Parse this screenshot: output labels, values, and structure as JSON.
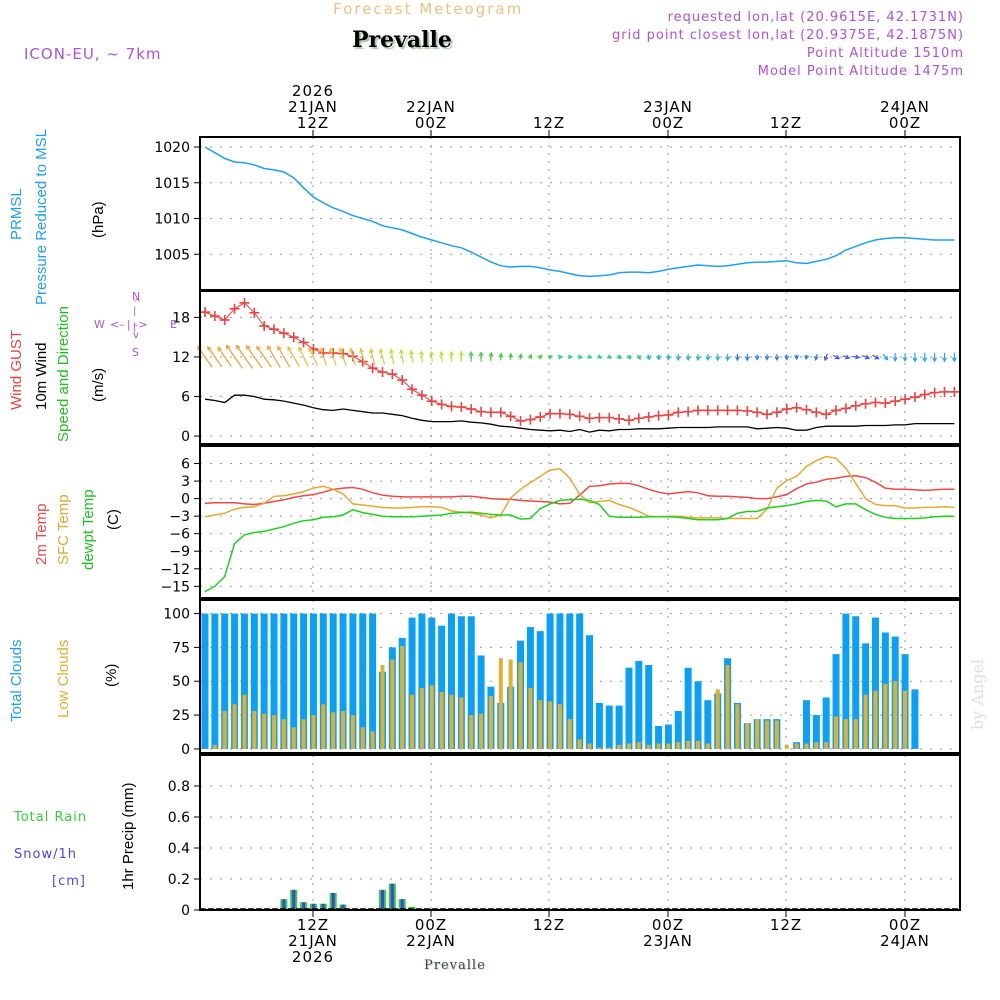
{
  "header": {
    "subtitle": "Forecast Meteogram",
    "station": "Prevalle",
    "model": "ICON-EU, ~ 7km",
    "requested": "requested lon,lat (20.9615E, 42.1731N)",
    "grid_point": "grid point closest lon,lat (20.9375E, 42.1875N)",
    "point_altitude": "Point Altitude 1510m",
    "model_altitude": "Model Point Altitude 1475m"
  },
  "top_axis": [
    {
      "lines": [
        "2026",
        "21JAN",
        "12Z"
      ]
    },
    {
      "lines": [
        "22JAN",
        "00Z"
      ]
    },
    {
      "lines": [
        "12Z"
      ]
    },
    {
      "lines": [
        "23JAN",
        "00Z"
      ]
    },
    {
      "lines": [
        "12Z"
      ]
    },
    {
      "lines": [
        "24JAN",
        "00Z"
      ]
    }
  ],
  "bottom_axis": [
    {
      "lines": [
        "12Z",
        "21JAN",
        "2026"
      ]
    },
    {
      "lines": [
        "00Z",
        "22JAN"
      ]
    },
    {
      "lines": [
        "12Z"
      ]
    },
    {
      "lines": [
        "00Z",
        "23JAN"
      ]
    },
    {
      "lines": [
        "12Z"
      ]
    },
    {
      "lines": [
        "00Z",
        "24JAN"
      ]
    }
  ],
  "bottom_station": "Prevalle",
  "watermark": "by Angel",
  "labels": {
    "pressure": {
      "l1": "PRMSL",
      "l2": "Pressure Reduced to MSL",
      "unit": "(hPa)"
    },
    "wind": {
      "gust": "Wind GUST",
      "wind10": "10m Wind",
      "speed_dir": "Speed and Direction",
      "unit": "(m/s)",
      "compass": {
        "n": "N",
        "s": "S",
        "w": "W",
        "e": "E"
      }
    },
    "temp": {
      "t2m": "2m Temp",
      "sfc": "SFC Temp",
      "dew": "dewpt Temp",
      "unit": "(C)"
    },
    "clouds": {
      "total": "Total Clouds",
      "low": "Low Clouds",
      "unit": "(%)"
    },
    "precip": {
      "rain": "Total   Rain",
      "snow": "Snow/1h",
      "snow_unit": "[cm]",
      "unit": "1hr Precip (mm)"
    }
  },
  "colors": {
    "pressure": "#1ea0f0",
    "gust": "#f04040",
    "wind10": "#000000",
    "t2m": "#f04848",
    "sfc": "#e8a830",
    "dew": "#20d020",
    "total_clouds": "#0aa0f5",
    "low_clouds": "#e0b030",
    "rain": "#30d030",
    "snow": "#4040f0",
    "label_purple": "#b050e0"
  },
  "chart_data": [
    {
      "type": "line",
      "title": "PRMSL Pressure Reduced to MSL",
      "ylabel": "(hPa)",
      "ylim": [
        1000,
        1021.4
      ],
      "yticks": [
        1005,
        1010,
        1015,
        1020
      ],
      "x_unit": "hours from 01Z 21JAN 2026",
      "series": [
        {
          "name": "PRMSL",
          "values": [
            1020.0,
            1019.2,
            1018.4,
            1017.9,
            1017.8,
            1017.5,
            1017.0,
            1016.8,
            1016.5,
            1015.7,
            1014.3,
            1013.0,
            1012.2,
            1011.5,
            1011.0,
            1010.4,
            1010.0,
            1009.6,
            1009.0,
            1008.7,
            1008.4,
            1007.9,
            1007.4,
            1007.0,
            1006.6,
            1006.2,
            1005.9,
            1005.3,
            1004.6,
            1003.9,
            1003.4,
            1003.2,
            1003.3,
            1003.3,
            1003.1,
            1002.8,
            1002.6,
            1002.3,
            1002.0,
            1001.9,
            1002.0,
            1002.1,
            1002.4,
            1002.5,
            1002.5,
            1002.4,
            1002.6,
            1002.9,
            1003.1,
            1003.3,
            1003.5,
            1003.4,
            1003.3,
            1003.4,
            1003.6,
            1003.8,
            1003.9,
            1003.9,
            1004.0,
            1004.1,
            1003.8,
            1003.7,
            1004.0,
            1004.3,
            1004.8,
            1005.6,
            1006.1,
            1006.6,
            1007.0,
            1007.2,
            1007.3,
            1007.3,
            1007.2,
            1007.1,
            1007.0,
            1007.0,
            1007.0
          ]
        }
      ]
    },
    {
      "type": "line",
      "title": "Wind GUST / 10m Wind Speed and Direction",
      "ylabel": "(m/s)",
      "ylim": [
        -1.2,
        22
      ],
      "yticks": [
        0,
        6,
        12,
        18
      ],
      "series": [
        {
          "name": "Wind GUST",
          "values": [
            18.8,
            18.2,
            17.6,
            19.3,
            20.2,
            18.7,
            16.7,
            16.2,
            15.6,
            15.0,
            14.2,
            13.2,
            12.6,
            12.6,
            12.5,
            12.1,
            11.3,
            10.3,
            9.7,
            9.4,
            8.5,
            7.1,
            6.2,
            5.3,
            4.8,
            4.5,
            4.4,
            4.1,
            3.7,
            3.6,
            3.6,
            3.0,
            2.3,
            2.5,
            2.9,
            3.4,
            3.4,
            3.3,
            3.0,
            2.7,
            2.8,
            2.8,
            2.6,
            2.4,
            2.7,
            2.9,
            3.1,
            3.2,
            3.6,
            3.7,
            3.9,
            3.9,
            3.9,
            3.9,
            3.9,
            3.8,
            3.6,
            3.3,
            3.6,
            4.1,
            4.3,
            4.0,
            3.6,
            3.3,
            3.9,
            4.2,
            4.6,
            4.9,
            5.1,
            5.0,
            5.3,
            5.6,
            5.9,
            6.3,
            6.6,
            6.7,
            6.7
          ]
        },
        {
          "name": "10m Wind",
          "values": [
            5.6,
            5.4,
            5.1,
            6.2,
            6.2,
            6.0,
            5.6,
            5.5,
            5.3,
            5.0,
            4.7,
            4.3,
            4.0,
            3.9,
            4.1,
            3.9,
            3.7,
            3.5,
            3.5,
            3.3,
            3.1,
            2.7,
            2.4,
            2.2,
            2.2,
            2.2,
            2.3,
            2.1,
            2.0,
            1.8,
            1.5,
            1.4,
            1.2,
            1.0,
            0.9,
            0.8,
            0.9,
            0.7,
            1.0,
            0.6,
            0.9,
            0.8,
            1.0,
            1.0,
            1.1,
            1.1,
            1.1,
            1.2,
            1.3,
            1.3,
            1.3,
            1.3,
            1.4,
            1.4,
            1.4,
            1.4,
            1.1,
            1.2,
            1.3,
            1.2,
            0.9,
            0.9,
            1.3,
            1.5,
            1.5,
            1.5,
            1.5,
            1.6,
            1.6,
            1.6,
            1.7,
            1.7,
            1.9,
            1.9,
            1.9,
            1.9,
            1.9
          ]
        },
        {
          "name": "Direction arrows (deg, from)",
          "values": [
            145,
            145,
            145,
            145,
            145,
            145,
            145,
            150,
            150,
            150,
            155,
            155,
            160,
            160,
            160,
            165,
            165,
            165,
            165,
            170,
            170,
            170,
            175,
            175,
            175,
            180,
            180,
            180,
            180,
            185,
            185,
            185,
            190,
            200,
            220,
            240,
            260,
            270,
            280,
            290,
            300,
            300,
            310,
            320,
            330,
            340,
            350,
            0,
            0,
            0,
            0,
            0,
            0,
            0,
            0,
            0,
            0,
            0,
            0,
            0,
            0,
            10,
            15,
            20,
            300,
            290,
            280,
            290,
            300,
            320,
            0,
            0,
            0,
            0,
            0,
            0,
            0
          ]
        }
      ]
    },
    {
      "type": "line",
      "title": "2m Temp / SFC Temp / dewpt Temp",
      "ylabel": "(C)",
      "ylim": [
        -17,
        9
      ],
      "yticks": [
        -15,
        -12,
        -9,
        -6,
        -3,
        0,
        3,
        6
      ],
      "series": [
        {
          "name": "2m Temp",
          "values": [
            -0.8,
            -0.7,
            -0.7,
            -0.7,
            -0.9,
            -1.0,
            -0.8,
            -0.5,
            -0.2,
            0.2,
            0.5,
            0.7,
            1.1,
            1.6,
            1.8,
            1.9,
            1.6,
            1.0,
            0.6,
            0.4,
            0.3,
            0.3,
            0.3,
            0.3,
            0.3,
            0.3,
            0.4,
            0.4,
            0.2,
            0.0,
            -0.1,
            -0.1,
            -0.3,
            -0.4,
            -0.5,
            -0.6,
            -0.9,
            -0.8,
            0.6,
            2.1,
            2.2,
            2.5,
            2.6,
            2.6,
            2.2,
            1.6,
            1.1,
            0.8,
            1.0,
            1.2,
            1.0,
            0.5,
            0.4,
            0.4,
            0.3,
            0.2,
            0.0,
            0.0,
            0.3,
            0.7,
            1.7,
            2.5,
            2.8,
            3.3,
            3.5,
            3.8,
            3.9,
            3.6,
            2.8,
            1.8,
            1.6,
            1.6,
            1.5,
            1.4,
            1.5,
            1.6,
            1.6
          ]
        },
        {
          "name": "SFC Temp",
          "values": [
            -3.1,
            -2.8,
            -2.5,
            -1.8,
            -1.5,
            -1.4,
            -0.8,
            0.4,
            0.5,
            0.8,
            1.2,
            1.8,
            2.1,
            1.6,
            0.8,
            -0.9,
            -1.1,
            -1.3,
            -1.5,
            -1.6,
            -1.6,
            -1.5,
            -1.4,
            -1.4,
            -1.5,
            -2.1,
            -2.3,
            -2.5,
            -2.8,
            -3.3,
            -2.8,
            0.1,
            1.6,
            2.7,
            3.8,
            4.9,
            5.1,
            3.5,
            0.7,
            -0.7,
            -0.5,
            -0.3,
            -1.0,
            -1.5,
            -2.2,
            -3.0,
            -3.1,
            -3.0,
            -3.0,
            -3.2,
            -3.3,
            -3.3,
            -3.3,
            -3.4,
            -3.4,
            -3.4,
            -3.4,
            -1.8,
            1.8,
            3.1,
            3.8,
            5.5,
            6.5,
            7.2,
            6.9,
            5.2,
            2.6,
            0.0,
            -1.0,
            -1.2,
            -1.2,
            -1.6,
            -1.6,
            -1.5,
            -1.5,
            -1.4,
            -1.5
          ]
        },
        {
          "name": "dewpt Temp",
          "values": [
            -15.9,
            -15.0,
            -13.3,
            -7.7,
            -6.2,
            -5.8,
            -5.6,
            -5.2,
            -4.8,
            -4.2,
            -3.8,
            -3.6,
            -3.2,
            -3.1,
            -2.8,
            -1.9,
            -2.4,
            -2.7,
            -3.0,
            -3.1,
            -3.1,
            -3.1,
            -3.0,
            -2.9,
            -2.8,
            -2.5,
            -2.4,
            -2.3,
            -2.5,
            -2.7,
            -2.8,
            -2.8,
            -3.5,
            -3.4,
            -1.7,
            -0.9,
            -0.3,
            -0.2,
            -0.1,
            -0.3,
            -1.0,
            -3.0,
            -3.2,
            -3.2,
            -3.2,
            -3.1,
            -3.1,
            -3.1,
            -3.2,
            -3.4,
            -3.6,
            -3.6,
            -3.6,
            -3.4,
            -2.5,
            -2.2,
            -2.2,
            -1.6,
            -1.4,
            -1.2,
            -0.9,
            -0.5,
            -0.3,
            -0.4,
            -1.4,
            -0.9,
            -0.9,
            -1.9,
            -2.7,
            -3.2,
            -3.4,
            -3.4,
            -3.4,
            -3.3,
            -3.1,
            -3.0,
            -3.0
          ]
        }
      ]
    },
    {
      "type": "bar",
      "title": "Total Clouds / Low Clouds",
      "ylabel": "(%)",
      "ylim": [
        -3,
        110
      ],
      "yticks": [
        0,
        25,
        50,
        75,
        100
      ],
      "series": [
        {
          "name": "Total Clouds",
          "values": [
            100,
            100,
            100,
            100,
            100,
            100,
            100,
            100,
            100,
            100,
            100,
            100,
            100,
            100,
            100,
            100,
            100,
            100,
            57,
            75,
            82,
            97,
            100,
            97,
            91,
            100,
            98,
            98,
            69,
            46,
            34,
            46,
            80,
            90,
            87,
            100,
            100,
            100,
            100,
            84,
            34,
            32,
            32,
            60,
            65,
            62,
            17,
            18,
            28,
            60,
            50,
            36,
            41,
            67,
            34,
            19,
            22,
            22,
            22,
            0,
            5,
            36,
            25,
            38,
            70,
            100,
            98,
            78,
            97,
            86,
            83,
            70,
            44,
            0,
            0,
            0,
            0
          ]
        },
        {
          "name": "Low Clouds",
          "values": [
            0,
            3,
            28,
            33,
            40,
            28,
            26,
            25,
            22,
            16,
            22,
            25,
            33,
            27,
            28,
            25,
            16,
            13,
            62,
            66,
            76,
            40,
            45,
            47,
            42,
            40,
            38,
            25,
            26,
            39,
            67,
            66,
            64,
            45,
            36,
            35,
            33,
            22,
            7,
            4,
            1,
            1,
            3,
            4,
            5,
            3,
            4,
            4,
            5,
            6,
            6,
            4,
            44,
            62,
            33,
            19,
            22,
            21,
            21,
            3,
            4,
            4,
            5,
            5,
            24,
            22,
            22,
            40,
            43,
            48,
            50,
            43,
            0,
            0,
            0,
            0,
            0
          ]
        }
      ]
    },
    {
      "type": "bar",
      "title": "1hr Precip / Total Rain / Snow",
      "ylabel": "1hr Precip (mm)",
      "ylim": [
        0,
        1.0
      ],
      "yticks": [
        0,
        0.2,
        0.4,
        0.6,
        0.8
      ],
      "series": [
        {
          "name": "Total Rain",
          "values": [
            0,
            0,
            0,
            0,
            0,
            0,
            0,
            0,
            0.07,
            0.13,
            0.05,
            0.04,
            0.04,
            0.11,
            0.035,
            0,
            0,
            0,
            0.13,
            0.17,
            0.07,
            0.02,
            0,
            0,
            0,
            0.01,
            0,
            0,
            0,
            0,
            0,
            0,
            0,
            0,
            0,
            0,
            0,
            0,
            0,
            0,
            0,
            0,
            0,
            0,
            0,
            0,
            0,
            0,
            0,
            0,
            0,
            0,
            0,
            0,
            0,
            0,
            0,
            0,
            0,
            0,
            0,
            0,
            0,
            0,
            0,
            0,
            0,
            0,
            0,
            0,
            0,
            0,
            0,
            0,
            0,
            0,
            0
          ]
        },
        {
          "name": "Snow/1h [cm]",
          "values": [
            0,
            0,
            0,
            0,
            0,
            0,
            0,
            0.003,
            0.07,
            0.13,
            0.05,
            0.04,
            0.04,
            0.11,
            0.035,
            0,
            0,
            0.003,
            0.13,
            0.17,
            0.07,
            0.01,
            0,
            0,
            0,
            0,
            0,
            0,
            0,
            0,
            0,
            0,
            0,
            0,
            0,
            0,
            0,
            0,
            0,
            0,
            0,
            0,
            0,
            0,
            0,
            0,
            0,
            0,
            0,
            0,
            0,
            0,
            0,
            0,
            0,
            0,
            0,
            0,
            0,
            0,
            0,
            0,
            0,
            0,
            0,
            0,
            0,
            0,
            0,
            0,
            0,
            0,
            0,
            0,
            0,
            0,
            0
          ]
        }
      ]
    }
  ]
}
